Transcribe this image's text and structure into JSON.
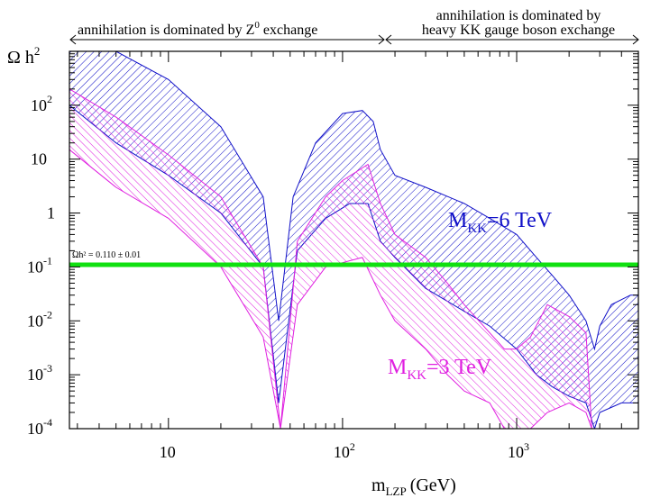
{
  "chart_data": {
    "type": "area",
    "x_scale": "log",
    "y_scale": "log",
    "xlim": [
      2.7,
      5000
    ],
    "ylim": [
      0.0001,
      1000
    ],
    "xlabel": "m",
    "xlabel_sub": "LZP",
    "xlabel_unit": "(GeV)",
    "ylabel": "Ω h",
    "ylabel_sup": "2",
    "x_ticks": [
      {
        "value": 10,
        "base": "10",
        "exp": ""
      },
      {
        "value": 100,
        "base": "10",
        "exp": "2"
      },
      {
        "value": 1000,
        "base": "10",
        "exp": "3"
      }
    ],
    "y_ticks": [
      {
        "value": 100,
        "base": "10",
        "exp": "2"
      },
      {
        "value": 10,
        "base": "10",
        "exp": ""
      },
      {
        "value": 1,
        "base": "1",
        "exp": ""
      },
      {
        "value": 0.1,
        "base": "10",
        "exp": "-1"
      },
      {
        "value": 0.01,
        "base": "10",
        "exp": "-2"
      },
      {
        "value": 0.001,
        "base": "10",
        "exp": "-3"
      },
      {
        "value": 0.0001,
        "base": "10",
        "exp": "-4"
      }
    ],
    "top_annotations": {
      "left": "annihilation is dominated by Z",
      "left_sup": "0",
      "left_tail": " exchange",
      "right_line1": "annihilation is dominated by",
      "right_line2": "heavy KK gauge boson exchange"
    },
    "band_label": "Ωh² = 0.110 ± 0.01",
    "band_value": 0.11,
    "series": [
      {
        "name": "M",
        "name_sub": "KK",
        "name_tail": "=6 TeV",
        "color": "#1010c8",
        "upper": [
          [
            2.7,
            1000
          ],
          [
            5,
            1000
          ],
          [
            10,
            300
          ],
          [
            20,
            40
          ],
          [
            35,
            2
          ],
          [
            43,
            0.01
          ],
          [
            52,
            2
          ],
          [
            70,
            20
          ],
          [
            100,
            70
          ],
          [
            130,
            80
          ],
          [
            150,
            50
          ],
          [
            165,
            15
          ],
          [
            200,
            5
          ],
          [
            300,
            3
          ],
          [
            500,
            1.5
          ],
          [
            700,
            0.8
          ],
          [
            1000,
            0.4
          ],
          [
            1300,
            0.15
          ],
          [
            1600,
            0.07
          ],
          [
            2000,
            0.03
          ],
          [
            2500,
            0.01
          ],
          [
            2800,
            0.003
          ],
          [
            3000,
            0.008
          ],
          [
            3500,
            0.02
          ],
          [
            4500,
            0.03
          ],
          [
            5000,
            0.03
          ]
        ],
        "lower": [
          [
            2.7,
            100
          ],
          [
            5,
            20
          ],
          [
            10,
            5
          ],
          [
            20,
            1
          ],
          [
            35,
            0.1
          ],
          [
            43,
            0.0003
          ],
          [
            55,
            0.2
          ],
          [
            80,
            0.8
          ],
          [
            110,
            1.5
          ],
          [
            140,
            1.5
          ],
          [
            165,
            0.3
          ],
          [
            200,
            0.15
          ],
          [
            300,
            0.04
          ],
          [
            500,
            0.015
          ],
          [
            700,
            0.008
          ],
          [
            1000,
            0.003
          ],
          [
            1300,
            0.001
          ],
          [
            1600,
            0.0006
          ],
          [
            2000,
            0.0004
          ],
          [
            2500,
            0.0003
          ],
          [
            2800,
            0.0001
          ],
          [
            3000,
            0.0002
          ],
          [
            4000,
            0.0003
          ],
          [
            5000,
            0.0003
          ]
        ]
      },
      {
        "name": "M",
        "name_sub": "KK",
        "name_tail": "=3 TeV",
        "color": "#e020e0",
        "upper": [
          [
            2.7,
            200
          ],
          [
            5,
            60
          ],
          [
            10,
            12
          ],
          [
            20,
            2
          ],
          [
            35,
            0.1
          ],
          [
            44,
            0.0001
          ],
          [
            55,
            0.3
          ],
          [
            80,
            2
          ],
          [
            100,
            4
          ],
          [
            140,
            8
          ],
          [
            165,
            1.5
          ],
          [
            200,
            0.4
          ],
          [
            300,
            0.15
          ],
          [
            400,
            0.05
          ],
          [
            500,
            0.02
          ],
          [
            700,
            0.006
          ],
          [
            850,
            0.003
          ],
          [
            1000,
            0.003
          ],
          [
            1200,
            0.005
          ],
          [
            1500,
            0.02
          ],
          [
            2000,
            0.012
          ],
          [
            2500,
            0.006
          ],
          [
            2700,
            0.0001
          ]
        ],
        "lower": [
          [
            2.7,
            15
          ],
          [
            5,
            3
          ],
          [
            10,
            0.8
          ],
          [
            20,
            0.1
          ],
          [
            35,
            0.005
          ],
          [
            44,
            0.0001
          ],
          [
            55,
            0.02
          ],
          [
            80,
            0.1
          ],
          [
            100,
            0.12
          ],
          [
            130,
            0.15
          ],
          [
            165,
            0.03
          ],
          [
            200,
            0.01
          ],
          [
            300,
            0.003
          ],
          [
            400,
            0.001
          ],
          [
            500,
            0.0005
          ],
          [
            700,
            0.0003
          ],
          [
            850,
            0.0001
          ],
          [
            1000,
            0.0001
          ],
          [
            1200,
            0.0001
          ],
          [
            1500,
            0.0002
          ],
          [
            2000,
            0.0003
          ],
          [
            2500,
            0.0002
          ],
          [
            2700,
            0.0001
          ]
        ]
      }
    ]
  }
}
